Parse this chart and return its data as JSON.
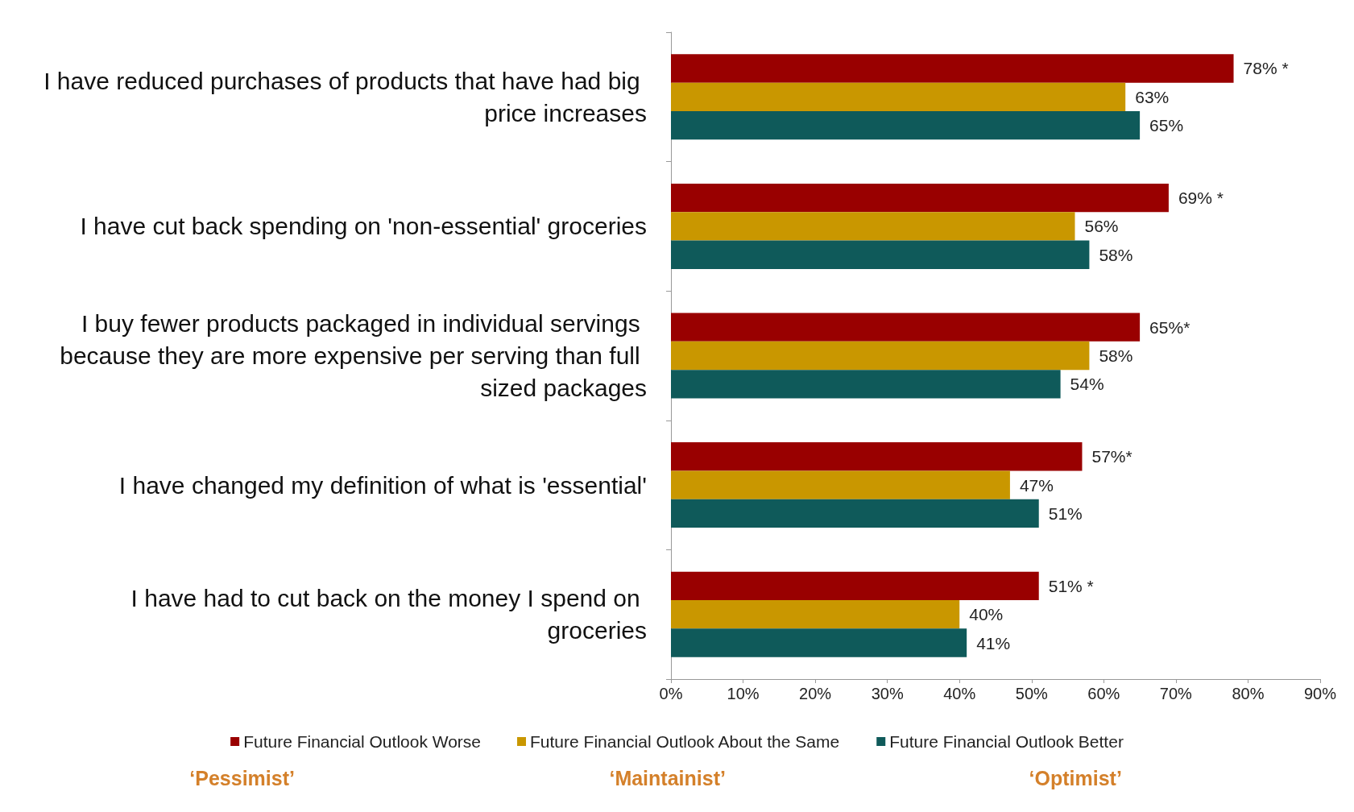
{
  "chart_data": {
    "type": "bar",
    "orientation": "horizontal",
    "categories": [
      "I have reduced purchases of products that have had big price increases",
      "I have cut back spending on 'non-essential' groceries",
      "I buy fewer products packaged in individual servings because they are more expensive per serving than full sized packages",
      "I have changed my definition of what is 'essential'",
      "I have had to cut back on the money I spend on groceries"
    ],
    "series": [
      {
        "name": "Future Financial Outlook Worse",
        "color": "#990000",
        "values": [
          78,
          69,
          65,
          57,
          51
        ],
        "value_labels": [
          "78% *",
          "69% *",
          "65%*",
          "57%*",
          "51% *"
        ]
      },
      {
        "name": "Future Financial Outlook About the Same",
        "color": "#c99700",
        "values": [
          63,
          56,
          58,
          47,
          40
        ],
        "value_labels": [
          "63%",
          "56%",
          "58%",
          "47%",
          "40%"
        ]
      },
      {
        "name": "Future Financial Outlook Better",
        "color": "#0f5a5a",
        "values": [
          65,
          58,
          54,
          51,
          41
        ],
        "value_labels": [
          "65%",
          "58%",
          "54%",
          "51%",
          "41%"
        ]
      }
    ],
    "xlim": [
      0,
      90
    ],
    "xticks": [
      {
        "value": 0,
        "label": "0%"
      },
      {
        "value": 10,
        "label": "10%"
      },
      {
        "value": 20,
        "label": "20%"
      },
      {
        "value": 30,
        "label": "30%"
      },
      {
        "value": 40,
        "label": "40%"
      },
      {
        "value": 50,
        "label": "50%"
      },
      {
        "value": 60,
        "label": "60%"
      },
      {
        "value": 70,
        "label": "70%"
      },
      {
        "value": 80,
        "label": "80%"
      },
      {
        "value": 90,
        "label": "90%"
      }
    ],
    "grid": false,
    "legend": "bottom",
    "annotations": [
      "‘Pessimist’",
      "‘Maintainist’",
      "‘Optimist’"
    ]
  }
}
